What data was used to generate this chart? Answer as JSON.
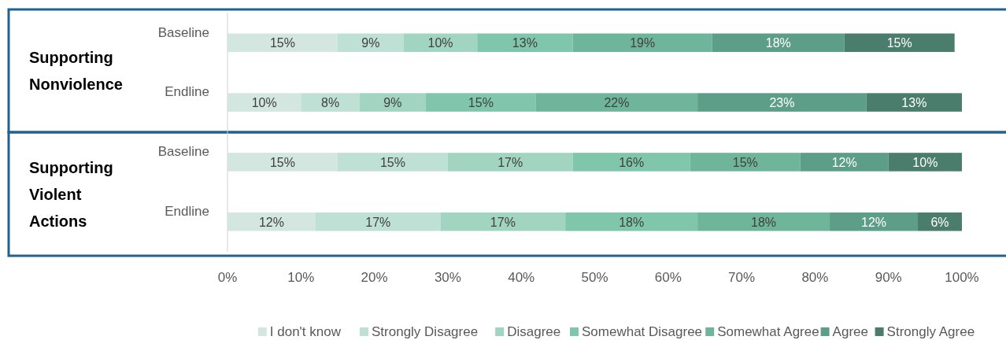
{
  "chart_data": {
    "type": "bar",
    "orientation": "horizontal",
    "stacked": true,
    "categories": [
      "Baseline",
      "Endline",
      "Baseline",
      "Endline"
    ],
    "annotations": [
      "Supporting Nonviolence",
      "Supporting Violent Actions"
    ],
    "series": [
      {
        "name": "I don't know",
        "color": "#d3e6df",
        "values": [
          15,
          10,
          15,
          12
        ],
        "value_labels": [
          "15%",
          "10%",
          "15%",
          "12%"
        ]
      },
      {
        "name": "Strongly Disagree",
        "color": "#bfe0d4",
        "values": [
          9,
          8,
          15,
          17
        ],
        "value_labels": [
          "9%",
          "8%",
          "15%",
          "17%"
        ]
      },
      {
        "name": "Disagree",
        "color": "#a2d4c2",
        "values": [
          10,
          9,
          17,
          17
        ],
        "value_labels": [
          "10%",
          "9%",
          "17%",
          "17%"
        ]
      },
      {
        "name": "Somewhat Disagree",
        "color": "#7fc6ac",
        "values": [
          13,
          15,
          16,
          18
        ],
        "value_labels": [
          "13%",
          "15%",
          "16%",
          "18%"
        ]
      },
      {
        "name": "Somewhat Agree",
        "color": "#6fb59c",
        "values": [
          19,
          22,
          15,
          18
        ],
        "value_labels": [
          "19%",
          "22%",
          "15%",
          "18%"
        ]
      },
      {
        "name": "Agree",
        "color": "#5d9e88",
        "values": [
          18,
          23,
          12,
          12
        ],
        "value_labels": [
          "18%",
          "23%",
          "12%",
          "12%"
        ]
      },
      {
        "name": "Strongly Agree",
        "color": "#4a7d6c",
        "values": [
          15,
          13,
          10,
          6
        ],
        "value_labels": [
          "15%",
          "13%",
          "10%",
          "6%"
        ]
      }
    ],
    "xlim": [
      0,
      100
    ],
    "xticks": [
      {
        "value": 0,
        "label": "0%"
      },
      {
        "value": 10,
        "label": "10%"
      },
      {
        "value": 20,
        "label": "20%"
      },
      {
        "value": 30,
        "label": "30%"
      },
      {
        "value": 40,
        "label": "40%"
      },
      {
        "value": 50,
        "label": "50%"
      },
      {
        "value": 60,
        "label": "60%"
      },
      {
        "value": 70,
        "label": "70%"
      },
      {
        "value": 80,
        "label": "80%"
      },
      {
        "value": 90,
        "label": "90%"
      },
      {
        "value": 100,
        "label": "100%"
      }
    ],
    "grid": false,
    "legend": "bottom"
  }
}
